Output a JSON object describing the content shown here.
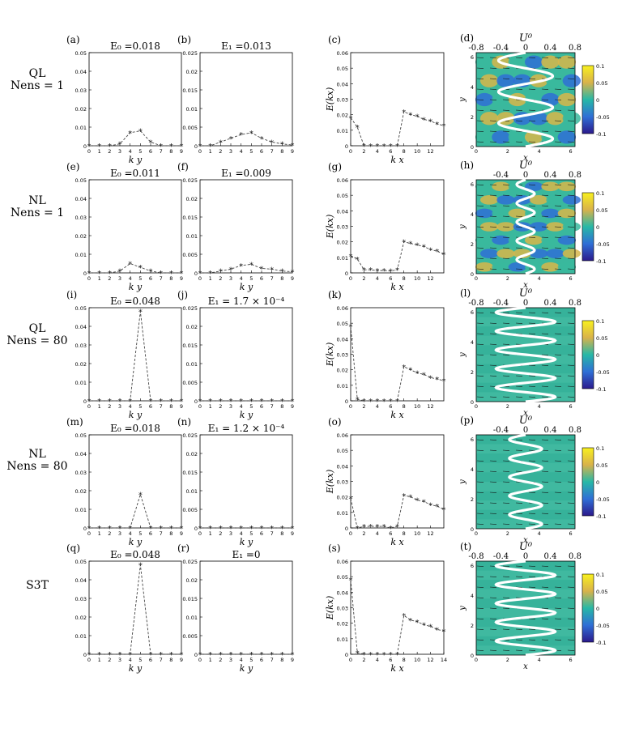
{
  "rows": [
    {
      "row_label": [
        "QL",
        "N_ens = 1"
      ]
    },
    {
      "row_label": [
        "NL",
        "N_ens = 1"
      ]
    },
    {
      "row_label": [
        "QL",
        "N_ens = 80"
      ]
    },
    {
      "row_label": [
        "NL",
        "N_ens = 80"
      ]
    },
    {
      "row_label": [
        "S3T"
      ]
    }
  ],
  "chart_data": [
    {
      "panel": "(a)",
      "type": "line",
      "title": "E_0 =0.018",
      "xlabel": "k_y",
      "ylabel": "",
      "x": [
        0,
        1,
        2,
        3,
        4,
        5,
        6,
        7,
        8,
        9
      ],
      "values": [
        0,
        0,
        0,
        0.001,
        0.007,
        0.008,
        0.002,
        0,
        0,
        0
      ],
      "xlim": [
        0,
        9
      ],
      "ylim": [
        0,
        0.05
      ],
      "xticks": [
        "0",
        "1",
        "2",
        "3",
        "4",
        "5",
        "6",
        "7",
        "8",
        "9"
      ],
      "yticks": [
        "0",
        "0.01",
        "0.02",
        "0.03",
        "0.04",
        "0.05"
      ]
    },
    {
      "panel": "(b)",
      "type": "line",
      "title": "E_1 =0.013",
      "xlabel": "",
      "ylabel": "",
      "x": [
        0,
        1,
        2,
        3,
        4,
        5,
        6,
        7,
        8,
        9
      ],
      "values": [
        0,
        0,
        0.001,
        0.002,
        0.003,
        0.0035,
        0.002,
        0.001,
        0.0005,
        0.0002
      ],
      "xlim": [
        0,
        9
      ],
      "ylim": [
        0,
        0.025
      ],
      "xticks": [
        "0",
        "1",
        "2",
        "3",
        "4",
        "5",
        "6",
        "7",
        "8",
        "9"
      ],
      "yticks": [
        "0",
        "0.005",
        "0.01",
        "0.015",
        "0.02",
        "0.025"
      ]
    },
    {
      "panel": "(c)",
      "type": "line",
      "title": "",
      "xlabel": "k_x",
      "ylabel": "E(k_x)",
      "x": [
        0,
        1,
        2,
        3,
        4,
        5,
        6,
        7,
        8,
        9,
        10,
        11,
        12,
        13,
        14
      ],
      "values": [
        0.018,
        0.012,
        0,
        0,
        0,
        0,
        0,
        0,
        0.022,
        0.02,
        0.019,
        0.017,
        0.016,
        0.014,
        0.013
      ],
      "xlim": [
        0,
        14
      ],
      "ylim": [
        0,
        0.06
      ],
      "xticks": [
        "0",
        "2",
        "4",
        "6",
        "8",
        "10",
        "12"
      ],
      "yticks": [
        "0",
        "0.01",
        "0.02",
        "0.03",
        "0.04",
        "0.05",
        "0.06"
      ]
    },
    {
      "panel": "(d)",
      "type": "heatmap",
      "title": "U^0",
      "xlabel": "x",
      "ylabel": "y",
      "xlim": [
        0,
        6.28
      ],
      "ylim": [
        0,
        6.28
      ],
      "top_axis_ticks": [
        "-0.8",
        "-0.4",
        "0",
        "0.4",
        "0.8"
      ],
      "xticks": [
        "0",
        "2",
        "4",
        "6"
      ],
      "yticks": [
        "0",
        "2",
        "4",
        "6"
      ],
      "colorbar_ticks": [
        "0.1",
        "0.05",
        "0",
        "-0.05",
        "-0.1"
      ],
      "colorbar_limits": [
        -0.1,
        0.1
      ],
      "profile_oscillations": 3,
      "profile_amplitude": 0.55
    },
    {
      "panel": "(e)",
      "type": "line",
      "title": "E_0 =0.011",
      "xlabel": "k_y",
      "ylabel": "",
      "x": [
        0,
        1,
        2,
        3,
        4,
        5,
        6,
        7,
        8,
        9
      ],
      "values": [
        0,
        0,
        0,
        0.001,
        0.005,
        0.003,
        0.001,
        0,
        0,
        0
      ],
      "xlim": [
        0,
        9
      ],
      "ylim": [
        0,
        0.05
      ],
      "xticks": [
        "0",
        "1",
        "2",
        "3",
        "4",
        "5",
        "6",
        "7",
        "8",
        "9"
      ],
      "yticks": [
        "0",
        "0.01",
        "0.02",
        "0.03",
        "0.04",
        "0.05"
      ]
    },
    {
      "panel": "(f)",
      "type": "line",
      "title": "E_1 =0.009",
      "xlabel": "k_y",
      "ylabel": "",
      "x": [
        0,
        1,
        2,
        3,
        4,
        5,
        6,
        7,
        8,
        9
      ],
      "values": [
        0,
        0,
        0.0005,
        0.001,
        0.002,
        0.0023,
        0.0012,
        0.001,
        0.0005,
        0.0003
      ],
      "xlim": [
        0,
        9
      ],
      "ylim": [
        0,
        0.025
      ],
      "xticks": [
        "0",
        "1",
        "2",
        "3",
        "4",
        "5",
        "6",
        "7",
        "8",
        "9"
      ],
      "yticks": [
        "0",
        "0.005",
        "0.01",
        "0.015",
        "0.02",
        "0.025"
      ]
    },
    {
      "panel": "(g)",
      "type": "line",
      "title": "",
      "xlabel": "k_x",
      "ylabel": "E(k_x)",
      "x": [
        0,
        1,
        2,
        3,
        4,
        5,
        6,
        7,
        8,
        9,
        10,
        11,
        12,
        13,
        14
      ],
      "values": [
        0.011,
        0.009,
        0.002,
        0.002,
        0.0015,
        0.0015,
        0.0012,
        0.002,
        0.02,
        0.019,
        0.018,
        0.017,
        0.015,
        0.014,
        0.012
      ],
      "xlim": [
        0,
        14
      ],
      "ylim": [
        0,
        0.06
      ],
      "xticks": [
        "0",
        "2",
        "4",
        "6",
        "8",
        "10",
        "12"
      ],
      "yticks": [
        "0",
        "0.01",
        "0.02",
        "0.03",
        "0.04",
        "0.05",
        "0.06"
      ]
    },
    {
      "panel": "(h)",
      "type": "heatmap",
      "title": "U^0",
      "xlabel": "x",
      "ylabel": "y",
      "xlim": [
        0,
        6.28
      ],
      "ylim": [
        0,
        6.28
      ],
      "top_axis_ticks": [
        "-0.4",
        "0",
        "0.4",
        "0.8"
      ],
      "xticks": [
        "0",
        "2",
        "4",
        "6"
      ],
      "yticks": [
        "0",
        "2",
        "4",
        "6"
      ],
      "colorbar_ticks": [
        "0.1",
        "0.05",
        "0",
        "-0.05",
        "-0.1"
      ],
      "colorbar_limits": [
        -0.1,
        0.1
      ],
      "profile_oscillations": 5,
      "profile_amplitude": 0.18
    },
    {
      "panel": "(i)",
      "type": "line",
      "title": "E_0 =0.048",
      "xlabel": "k_y",
      "ylabel": "",
      "x": [
        0,
        1,
        2,
        3,
        4,
        5,
        6,
        7,
        8,
        9
      ],
      "values": [
        0,
        0,
        0,
        0,
        0,
        0.048,
        0,
        0,
        0,
        0
      ],
      "xlim": [
        0,
        9
      ],
      "ylim": [
        0,
        0.05
      ],
      "xticks": [
        "0",
        "1",
        "2",
        "3",
        "4",
        "5",
        "6",
        "7",
        "8",
        "9"
      ],
      "yticks": [
        "0",
        "0.01",
        "0.02",
        "0.03",
        "0.04",
        "0.05"
      ]
    },
    {
      "panel": "(j)",
      "type": "line",
      "title": "E_1 = 1.7 × 10^-4",
      "xlabel": "k_y",
      "ylabel": "",
      "x": [
        0,
        1,
        2,
        3,
        4,
        5,
        6,
        7,
        8,
        9
      ],
      "values": [
        0,
        0,
        0,
        0,
        0,
        0,
        0,
        0,
        0,
        0
      ],
      "xlim": [
        0,
        9
      ],
      "ylim": [
        0,
        0.025
      ],
      "xticks": [
        "0",
        "1",
        "2",
        "3",
        "4",
        "5",
        "6",
        "7",
        "8",
        "9"
      ],
      "yticks": [
        "0",
        "0.005",
        "0.01",
        "0.015",
        "0.02",
        "0.025"
      ]
    },
    {
      "panel": "(k)",
      "type": "line",
      "title": "",
      "xlabel": "k_x",
      "ylabel": "E(k_x)",
      "x": [
        0,
        1,
        2,
        3,
        4,
        5,
        6,
        7,
        8,
        9,
        10,
        11,
        12,
        13,
        14
      ],
      "values": [
        0.048,
        0.001,
        0,
        0,
        0,
        0,
        0,
        0,
        0.022,
        0.02,
        0.018,
        0.017,
        0.015,
        0.014,
        0.013
      ],
      "xlim": [
        0,
        14
      ],
      "ylim": [
        0,
        0.06
      ],
      "xticks": [
        "0",
        "2",
        "4",
        "6",
        "8",
        "10",
        "12"
      ],
      "yticks": [
        "0",
        "0.01",
        "0.02",
        "0.03",
        "0.04",
        "0.05",
        "0.06"
      ]
    },
    {
      "panel": "(l)",
      "type": "heatmap",
      "title": "U^0",
      "xlabel": "x",
      "ylabel": "y",
      "xlim": [
        0,
        6.28
      ],
      "ylim": [
        0,
        6.28
      ],
      "top_axis_ticks": [
        "-0.8",
        "-0.4",
        "0",
        "0.4",
        "0.8"
      ],
      "xticks": [
        "0",
        "2",
        "4",
        "6"
      ],
      "yticks": [
        "0",
        "2",
        "4",
        "6"
      ],
      "colorbar_ticks": [
        "0.1",
        "0.05",
        "0",
        "-0.05",
        "-0.1"
      ],
      "colorbar_limits": [
        -0.1,
        0.1
      ],
      "profile_oscillations": 5,
      "profile_amplitude": 0.6
    },
    {
      "panel": "(m)",
      "type": "line",
      "title": "E_0 =0.018",
      "xlabel": "k_y",
      "ylabel": "",
      "x": [
        0,
        1,
        2,
        3,
        4,
        5,
        6,
        7,
        8,
        9
      ],
      "values": [
        0,
        0,
        0,
        0,
        0,
        0.018,
        0,
        0,
        0,
        0
      ],
      "xlim": [
        0,
        9
      ],
      "ylim": [
        0,
        0.05
      ],
      "xticks": [
        "0",
        "1",
        "2",
        "3",
        "4",
        "5",
        "6",
        "7",
        "8",
        "9"
      ],
      "yticks": [
        "0",
        "0.01",
        "0.02",
        "0.03",
        "0.04",
        "0.05"
      ]
    },
    {
      "panel": "(n)",
      "type": "line",
      "title": "E_1 = 1.2 × 10^-4",
      "xlabel": "k_y",
      "ylabel": "",
      "x": [
        0,
        1,
        2,
        3,
        4,
        5,
        6,
        7,
        8,
        9
      ],
      "values": [
        0,
        0,
        0,
        0,
        0,
        0,
        0,
        0,
        0,
        0
      ],
      "xlim": [
        0,
        9
      ],
      "ylim": [
        0,
        0.025
      ],
      "xticks": [
        "0",
        "1",
        "2",
        "3",
        "4",
        "5",
        "6",
        "7",
        "8",
        "9"
      ],
      "yticks": [
        "0",
        "0.005",
        "0.01",
        "0.015",
        "0.02",
        "0.025"
      ]
    },
    {
      "panel": "(o)",
      "type": "line",
      "title": "",
      "xlabel": "k_x",
      "ylabel": "E(k_x)",
      "x": [
        0,
        1,
        2,
        3,
        4,
        5,
        6,
        7,
        8,
        9,
        10,
        11,
        12,
        13,
        14
      ],
      "values": [
        0.019,
        0,
        0.001,
        0.001,
        0.001,
        0.001,
        0,
        0.001,
        0.021,
        0.02,
        0.018,
        0.017,
        0.015,
        0.014,
        0.012
      ],
      "xlim": [
        0,
        14
      ],
      "ylim": [
        0,
        0.06
      ],
      "xticks": [
        "0",
        "2",
        "4",
        "6",
        "8",
        "10",
        "12"
      ],
      "yticks": [
        "0",
        "0.01",
        "0.02",
        "0.03",
        "0.04",
        "0.05",
        "0.06"
      ]
    },
    {
      "panel": "(p)",
      "type": "heatmap",
      "title": "U^0",
      "xlabel": "x",
      "ylabel": "y",
      "xlim": [
        0,
        6.28
      ],
      "ylim": [
        0,
        6.28
      ],
      "top_axis_ticks": [
        "-0.4",
        "0",
        "0.4",
        "0.8"
      ],
      "xticks": [
        "0",
        "2",
        "4",
        "6"
      ],
      "yticks": [
        "0",
        "2",
        "4",
        "6"
      ],
      "colorbar_ticks": [
        "0.1",
        "0.05",
        "0",
        "-0.05",
        "-0.1"
      ],
      "colorbar_limits": [
        -0.1,
        0.1
      ],
      "profile_oscillations": 5,
      "profile_amplitude": 0.33
    },
    {
      "panel": "(q)",
      "type": "line",
      "title": "E_0 =0.048",
      "xlabel": "k_y",
      "ylabel": "",
      "x": [
        0,
        1,
        2,
        3,
        4,
        5,
        6,
        7,
        8,
        9
      ],
      "values": [
        0,
        0,
        0,
        0,
        0,
        0.048,
        0,
        0,
        0,
        0
      ],
      "xlim": [
        0,
        9
      ],
      "ylim": [
        0,
        0.05
      ],
      "xticks": [
        "0",
        "1",
        "2",
        "3",
        "4",
        "5",
        "6",
        "7",
        "8",
        "9"
      ],
      "yticks": [
        "0",
        "0.01",
        "0.02",
        "0.03",
        "0.04",
        "0.05"
      ]
    },
    {
      "panel": "(r)",
      "type": "line",
      "title": "E_1 =0",
      "xlabel": "k_y",
      "ylabel": "",
      "x": [
        0,
        1,
        2,
        3,
        4,
        5,
        6,
        7,
        8,
        9
      ],
      "values": [
        0,
        0,
        0,
        0,
        0,
        0,
        0,
        0,
        0,
        0
      ],
      "xlim": [
        0,
        9
      ],
      "ylim": [
        0,
        0.025
      ],
      "xticks": [
        "0",
        "1",
        "2",
        "3",
        "4",
        "5",
        "6",
        "7",
        "8",
        "9"
      ],
      "yticks": [
        "0",
        "0.005",
        "0.01",
        "0.015",
        "0.02",
        "0.025"
      ]
    },
    {
      "panel": "(s)",
      "type": "line",
      "title": "",
      "xlabel": "k_x",
      "ylabel": "E(k_x)",
      "x": [
        0,
        1,
        2,
        3,
        4,
        5,
        6,
        7,
        8,
        9,
        10,
        11,
        12,
        13,
        14
      ],
      "values": [
        0.048,
        0.001,
        0,
        0,
        0,
        0,
        0,
        0,
        0.025,
        0.022,
        0.021,
        0.019,
        0.018,
        0.016,
        0.015
      ],
      "xlim": [
        0,
        14
      ],
      "ylim": [
        0,
        0.06
      ],
      "xticks": [
        "0",
        "2",
        "4",
        "6",
        "8",
        "10",
        "12",
        "14"
      ],
      "yticks": [
        "0",
        "0.01",
        "0.02",
        "0.03",
        "0.04",
        "0.05",
        "0.06"
      ]
    },
    {
      "panel": "(t)",
      "type": "heatmap",
      "title": "U^0",
      "xlabel": "x",
      "ylabel": "y",
      "xlim": [
        0,
        6.28
      ],
      "ylim": [
        0,
        6.28
      ],
      "top_axis_ticks": [
        "-0.8",
        "-0.4",
        "0",
        "0.4",
        "0.8"
      ],
      "xticks": [
        "0",
        "2",
        "4",
        "6"
      ],
      "yticks": [
        "0",
        "2",
        "4",
        "6"
      ],
      "colorbar_ticks": [
        "0.1",
        "0.05",
        "0",
        "-0.05",
        "-0.1"
      ],
      "colorbar_limits": [
        -0.1,
        0.1
      ],
      "profile_oscillations": 5,
      "profile_amplitude": 0.6
    }
  ]
}
